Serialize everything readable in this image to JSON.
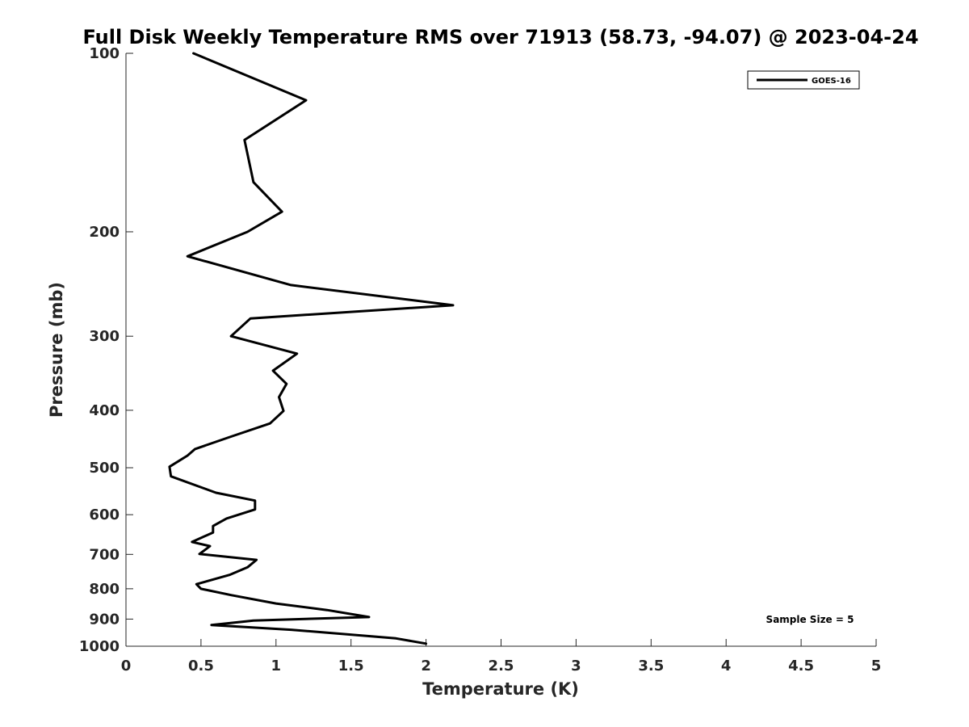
{
  "chart_data": {
    "type": "line",
    "title": "Full Disk Weekly Temperature RMS over 71913 (58.73, -94.07) @ 2023-04-24",
    "xlabel": "Temperature (K)",
    "ylabel": "Pressure (mb)",
    "xlim": [
      0,
      5
    ],
    "ylim": [
      100,
      1000
    ],
    "yscale": "log",
    "yreversed": true,
    "xticks": [
      "0",
      "0.5",
      "1",
      "1.5",
      "2",
      "2.5",
      "3",
      "3.5",
      "4",
      "4.5",
      "5"
    ],
    "xtick_values": [
      0,
      0.5,
      1,
      1.5,
      2,
      2.5,
      3,
      3.5,
      4,
      4.5,
      5
    ],
    "yticks": [
      "100",
      "200",
      "300",
      "400",
      "500",
      "600",
      "700",
      "800",
      "900",
      "1000"
    ],
    "ytick_values": [
      100,
      200,
      300,
      400,
      500,
      600,
      700,
      800,
      900,
      1000
    ],
    "grid": false,
    "legend_position": "top-right",
    "series": [
      {
        "name": "GOES-16",
        "color": "#000000",
        "points": [
          [
            0.45,
            100
          ],
          [
            1.2,
            120
          ],
          [
            0.79,
            140
          ],
          [
            0.85,
            165
          ],
          [
            1.04,
            185
          ],
          [
            0.81,
            200
          ],
          [
            0.41,
            220
          ],
          [
            1.1,
            246
          ],
          [
            2.18,
            266
          ],
          [
            0.83,
            280
          ],
          [
            0.7,
            300
          ],
          [
            1.14,
            321
          ],
          [
            0.98,
            343
          ],
          [
            1.07,
            361
          ],
          [
            1.02,
            380
          ],
          [
            1.05,
            401
          ],
          [
            0.96,
            421
          ],
          [
            0.7,
            443
          ],
          [
            0.46,
            465
          ],
          [
            0.41,
            477
          ],
          [
            0.29,
            498
          ],
          [
            0.3,
            517
          ],
          [
            0.6,
            551
          ],
          [
            0.86,
            568
          ],
          [
            0.86,
            588
          ],
          [
            0.67,
            609
          ],
          [
            0.58,
            627
          ],
          [
            0.58,
            643
          ],
          [
            0.44,
            667
          ],
          [
            0.56,
            678
          ],
          [
            0.49,
            699
          ],
          [
            0.87,
            715
          ],
          [
            0.81,
            736
          ],
          [
            0.69,
            758
          ],
          [
            0.47,
            786
          ],
          [
            0.5,
            800
          ],
          [
            0.7,
            820
          ],
          [
            1.0,
            847
          ],
          [
            1.34,
            869
          ],
          [
            1.62,
            893
          ],
          [
            0.85,
            905
          ],
          [
            0.57,
            921
          ],
          [
            1.1,
            938
          ],
          [
            1.8,
            970
          ],
          [
            2.0,
            990
          ]
        ]
      }
    ],
    "annotations": [
      "Sample Size = 5"
    ]
  }
}
